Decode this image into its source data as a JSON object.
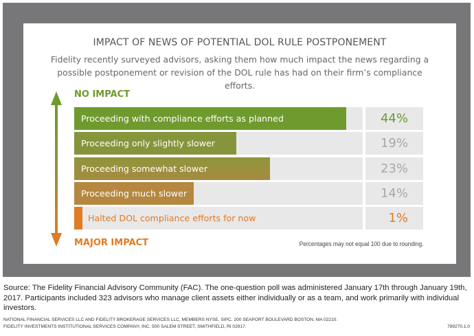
{
  "chart_data": {
    "type": "bar",
    "orientation": "horizontal",
    "title": "IMPACT OF NEWS OF POTENTIAL DOL RULE POSTPONEMENT",
    "subtitle": "Fidelity recently surveyed advisors, asking them how much impact the news regarding a possible postponement or revision of the DOL rule has had on their firm’s compliance efforts.",
    "categories": [
      "Proceeding with compliance efforts as planned",
      "Proceeding only slightly slower",
      "Proceeding somewhat slower",
      "Proceeding much slower",
      "Halted DOL compliance efforts for now"
    ],
    "values": [
      44,
      19,
      23,
      14,
      1
    ],
    "value_labels": [
      "44%",
      "19%",
      "23%",
      "14%",
      "1%"
    ],
    "unit": "%",
    "bar_colors": [
      "#6e9a2e",
      "#86953c",
      "#97903d",
      "#b5873f",
      "#e07b26"
    ],
    "value_colors": [
      "#6e9a2e",
      "#a8a8a8",
      "#a8a8a8",
      "#a8a8a8",
      "#e07b26"
    ],
    "label_colors": [
      "#ffffff",
      "#ffffff",
      "#ffffff",
      "#ffffff",
      "#e07b26"
    ],
    "scale_top_label": "NO IMPACT",
    "scale_bottom_label": "MAJOR IMPACT",
    "note": "Percentages may not equal 100 due to rounding.",
    "legend": "none",
    "grid": false
  },
  "footer": {
    "source": "Source: The Fidelity Financial Advisory Community (FAC). The one-question poll was administered January 17th through January 19th, 2017. Participants included 323 advisors who manage client assets either individually or as a team, and work primarily with individual investors.",
    "legal_line_1": "NATIONAL FINANCIAL SERVICES LLC AND FIDELITY BROKERAGE SERVICES LLC, MEMBERS NYSE, SIPC. 200 SEAPORT BOULEVARD BOSTON, MA 02210.",
    "legal_line_2": "FIDELITY INVESTMENTS INSTITUTIONAL SERVICES COMPANY, INC. 500 SALEM STREET, SMITHFIELD, RI 02917.",
    "code": "789270.1.0"
  },
  "colors": {
    "frame": "#777779",
    "track": "#e8e8e8",
    "green": "#6e9a2e",
    "orange": "#e07b26"
  }
}
